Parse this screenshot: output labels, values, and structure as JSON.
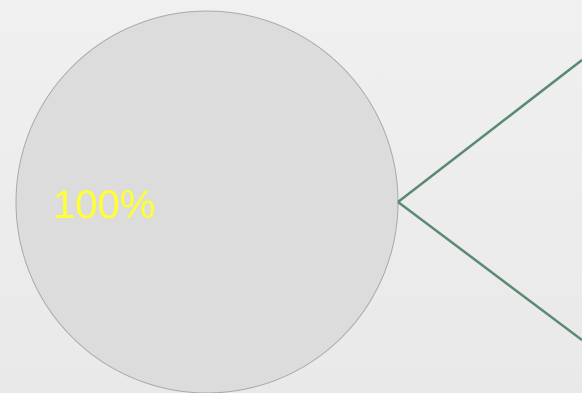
{
  "chart_data": {
    "type": "pie",
    "slices": [
      {
        "label": "100%",
        "value": 100,
        "color": "#dcdcdc"
      }
    ],
    "label_color": "#ffff33",
    "connector_color": "#5a8a72"
  }
}
